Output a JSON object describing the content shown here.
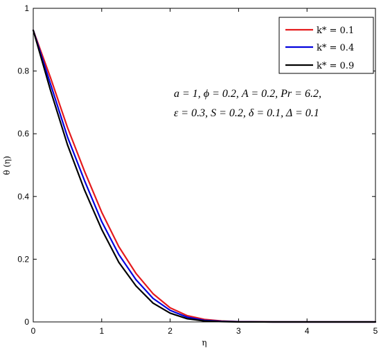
{
  "chart_data": {
    "type": "line",
    "xlabel": "η",
    "ylabel": "θ (η)",
    "xlim": [
      0,
      5
    ],
    "ylim": [
      0,
      1
    ],
    "x_ticks": [
      0,
      1,
      2,
      3,
      4,
      5
    ],
    "y_ticks": [
      0,
      0.2,
      0.4,
      0.6,
      0.8,
      1
    ],
    "x_tick_labels": [
      "0",
      "1",
      "2",
      "3",
      "4",
      "5"
    ],
    "y_tick_labels": [
      "0",
      "0.2",
      "0.4",
      "0.6",
      "0.8",
      "1"
    ],
    "grid": false,
    "legend_position": "top-right",
    "legend_labels": [
      "k* = 0.1",
      "k* = 0.4",
      "k* = 0.9"
    ],
    "annotation_lines": [
      "a = 1, ϕ = 0.2, A = 0.2, Pr = 6.2,",
      "ε = 0.3, S = 0.2, δ = 0.1, Δ = 0.1"
    ],
    "series": [
      {
        "name": "k* = 0.1",
        "color": "#e41a1c",
        "x": [
          0,
          0.25,
          0.5,
          0.75,
          1.0,
          1.25,
          1.5,
          1.75,
          2.0,
          2.25,
          2.5,
          2.75,
          3.0,
          3.5,
          4.0,
          5.0
        ],
        "y": [
          0.93,
          0.78,
          0.62,
          0.48,
          0.35,
          0.24,
          0.155,
          0.09,
          0.045,
          0.02,
          0.008,
          0.003,
          0.001,
          0.0,
          0.0,
          0.0
        ]
      },
      {
        "name": "k* = 0.4",
        "color": "#0000dd",
        "x": [
          0,
          0.25,
          0.5,
          0.75,
          1.0,
          1.25,
          1.5,
          1.75,
          2.0,
          2.25,
          2.5,
          2.75,
          3.0,
          3.5,
          4.0,
          5.0
        ],
        "y": [
          0.93,
          0.76,
          0.59,
          0.45,
          0.32,
          0.215,
          0.135,
          0.075,
          0.037,
          0.015,
          0.005,
          0.002,
          0.0005,
          0.0,
          0.0,
          0.0
        ]
      },
      {
        "name": "k* = 0.9",
        "color": "#000000",
        "x": [
          0,
          0.25,
          0.5,
          0.75,
          1.0,
          1.25,
          1.5,
          1.75,
          2.0,
          2.25,
          2.5,
          2.75,
          3.0,
          3.5,
          4.0,
          5.0
        ],
        "y": [
          0.93,
          0.74,
          0.565,
          0.42,
          0.295,
          0.19,
          0.115,
          0.06,
          0.028,
          0.01,
          0.003,
          0.001,
          0.0,
          0.0,
          0.0,
          0.0
        ]
      }
    ]
  }
}
